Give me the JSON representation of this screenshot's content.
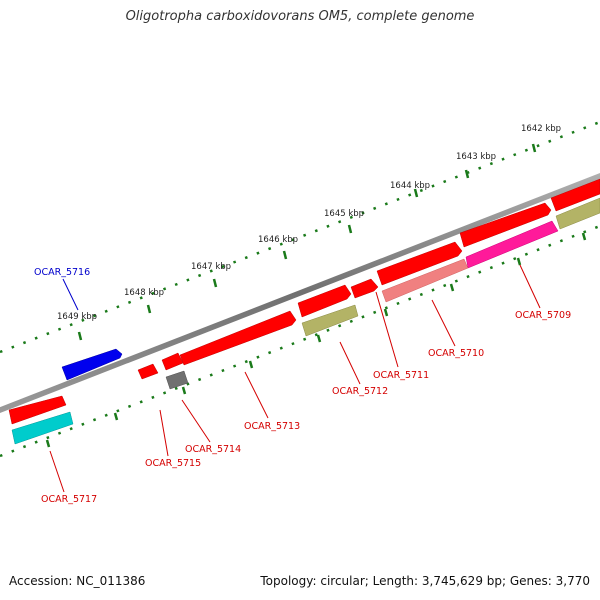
{
  "title": "Oligotropha carboxidovorans OM5, complete genome",
  "footer": {
    "accession": "Accession: NC_011386",
    "topology": "Topology: circular; Length: 3,745,629 bp; Genes: 3,770"
  },
  "kbp_ticks": [
    "1642 kbp",
    "1643 kbp",
    "1644 kbp",
    "1645 kbp",
    "1646 kbp",
    "1647 kbp",
    "1648 kbp",
    "1649 kbp"
  ],
  "genes": [
    {
      "id": "OCAR_5709",
      "label": "OCAR_5709",
      "color": "#ff1a9a"
    },
    {
      "id": "OCAR_5710",
      "label": "OCAR_5710",
      "color": "#f08080"
    },
    {
      "id": "OCAR_5711",
      "label": "OCAR_5711",
      "color": "#ff0000"
    },
    {
      "id": "OCAR_5712",
      "label": "OCAR_5712",
      "color": "#b3b366"
    },
    {
      "id": "OCAR_5713",
      "label": "OCAR_5713",
      "color": "#ff0000"
    },
    {
      "id": "OCAR_5714",
      "label": "OCAR_5714",
      "color": "#707070"
    },
    {
      "id": "OCAR_5715",
      "label": "OCAR_5715",
      "color": "#ff0000"
    },
    {
      "id": "OCAR_5716",
      "label": "OCAR_5716",
      "color": "#0000ee"
    },
    {
      "id": "OCAR_5717",
      "label": "OCAR_5717",
      "color": "#00cccc"
    }
  ],
  "colors": {
    "backbone": "#808080",
    "tick_ring": "#1a7a1a",
    "forward_gene": "#ff0000",
    "label_red": "#d40000",
    "label_blue": "#0000cc"
  }
}
